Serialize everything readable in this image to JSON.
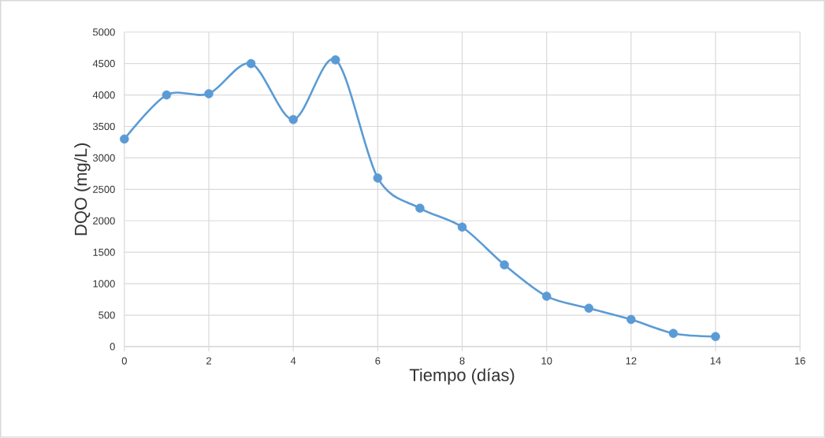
{
  "chart_data": {
    "type": "line",
    "xlabel": "Tiempo (días)",
    "ylabel": "DQO (mg/L)",
    "x": [
      0,
      1,
      2,
      3,
      4,
      5,
      6,
      7,
      8,
      9,
      10,
      11,
      12,
      13,
      14
    ],
    "values": [
      3300,
      4000,
      4020,
      4500,
      3610,
      4560,
      2680,
      2200,
      1900,
      1300,
      800,
      610,
      430,
      210,
      160
    ],
    "color": "#5b9bd5",
    "marker": "circle",
    "grid": true,
    "xlim": [
      0,
      16
    ],
    "xticks": [
      0,
      2,
      4,
      6,
      8,
      10,
      12,
      14,
      16
    ],
    "ylim": [
      0,
      5000
    ],
    "yticks": [
      0,
      500,
      1000,
      1500,
      2000,
      2500,
      3000,
      3500,
      4000,
      4500,
      5000
    ]
  }
}
